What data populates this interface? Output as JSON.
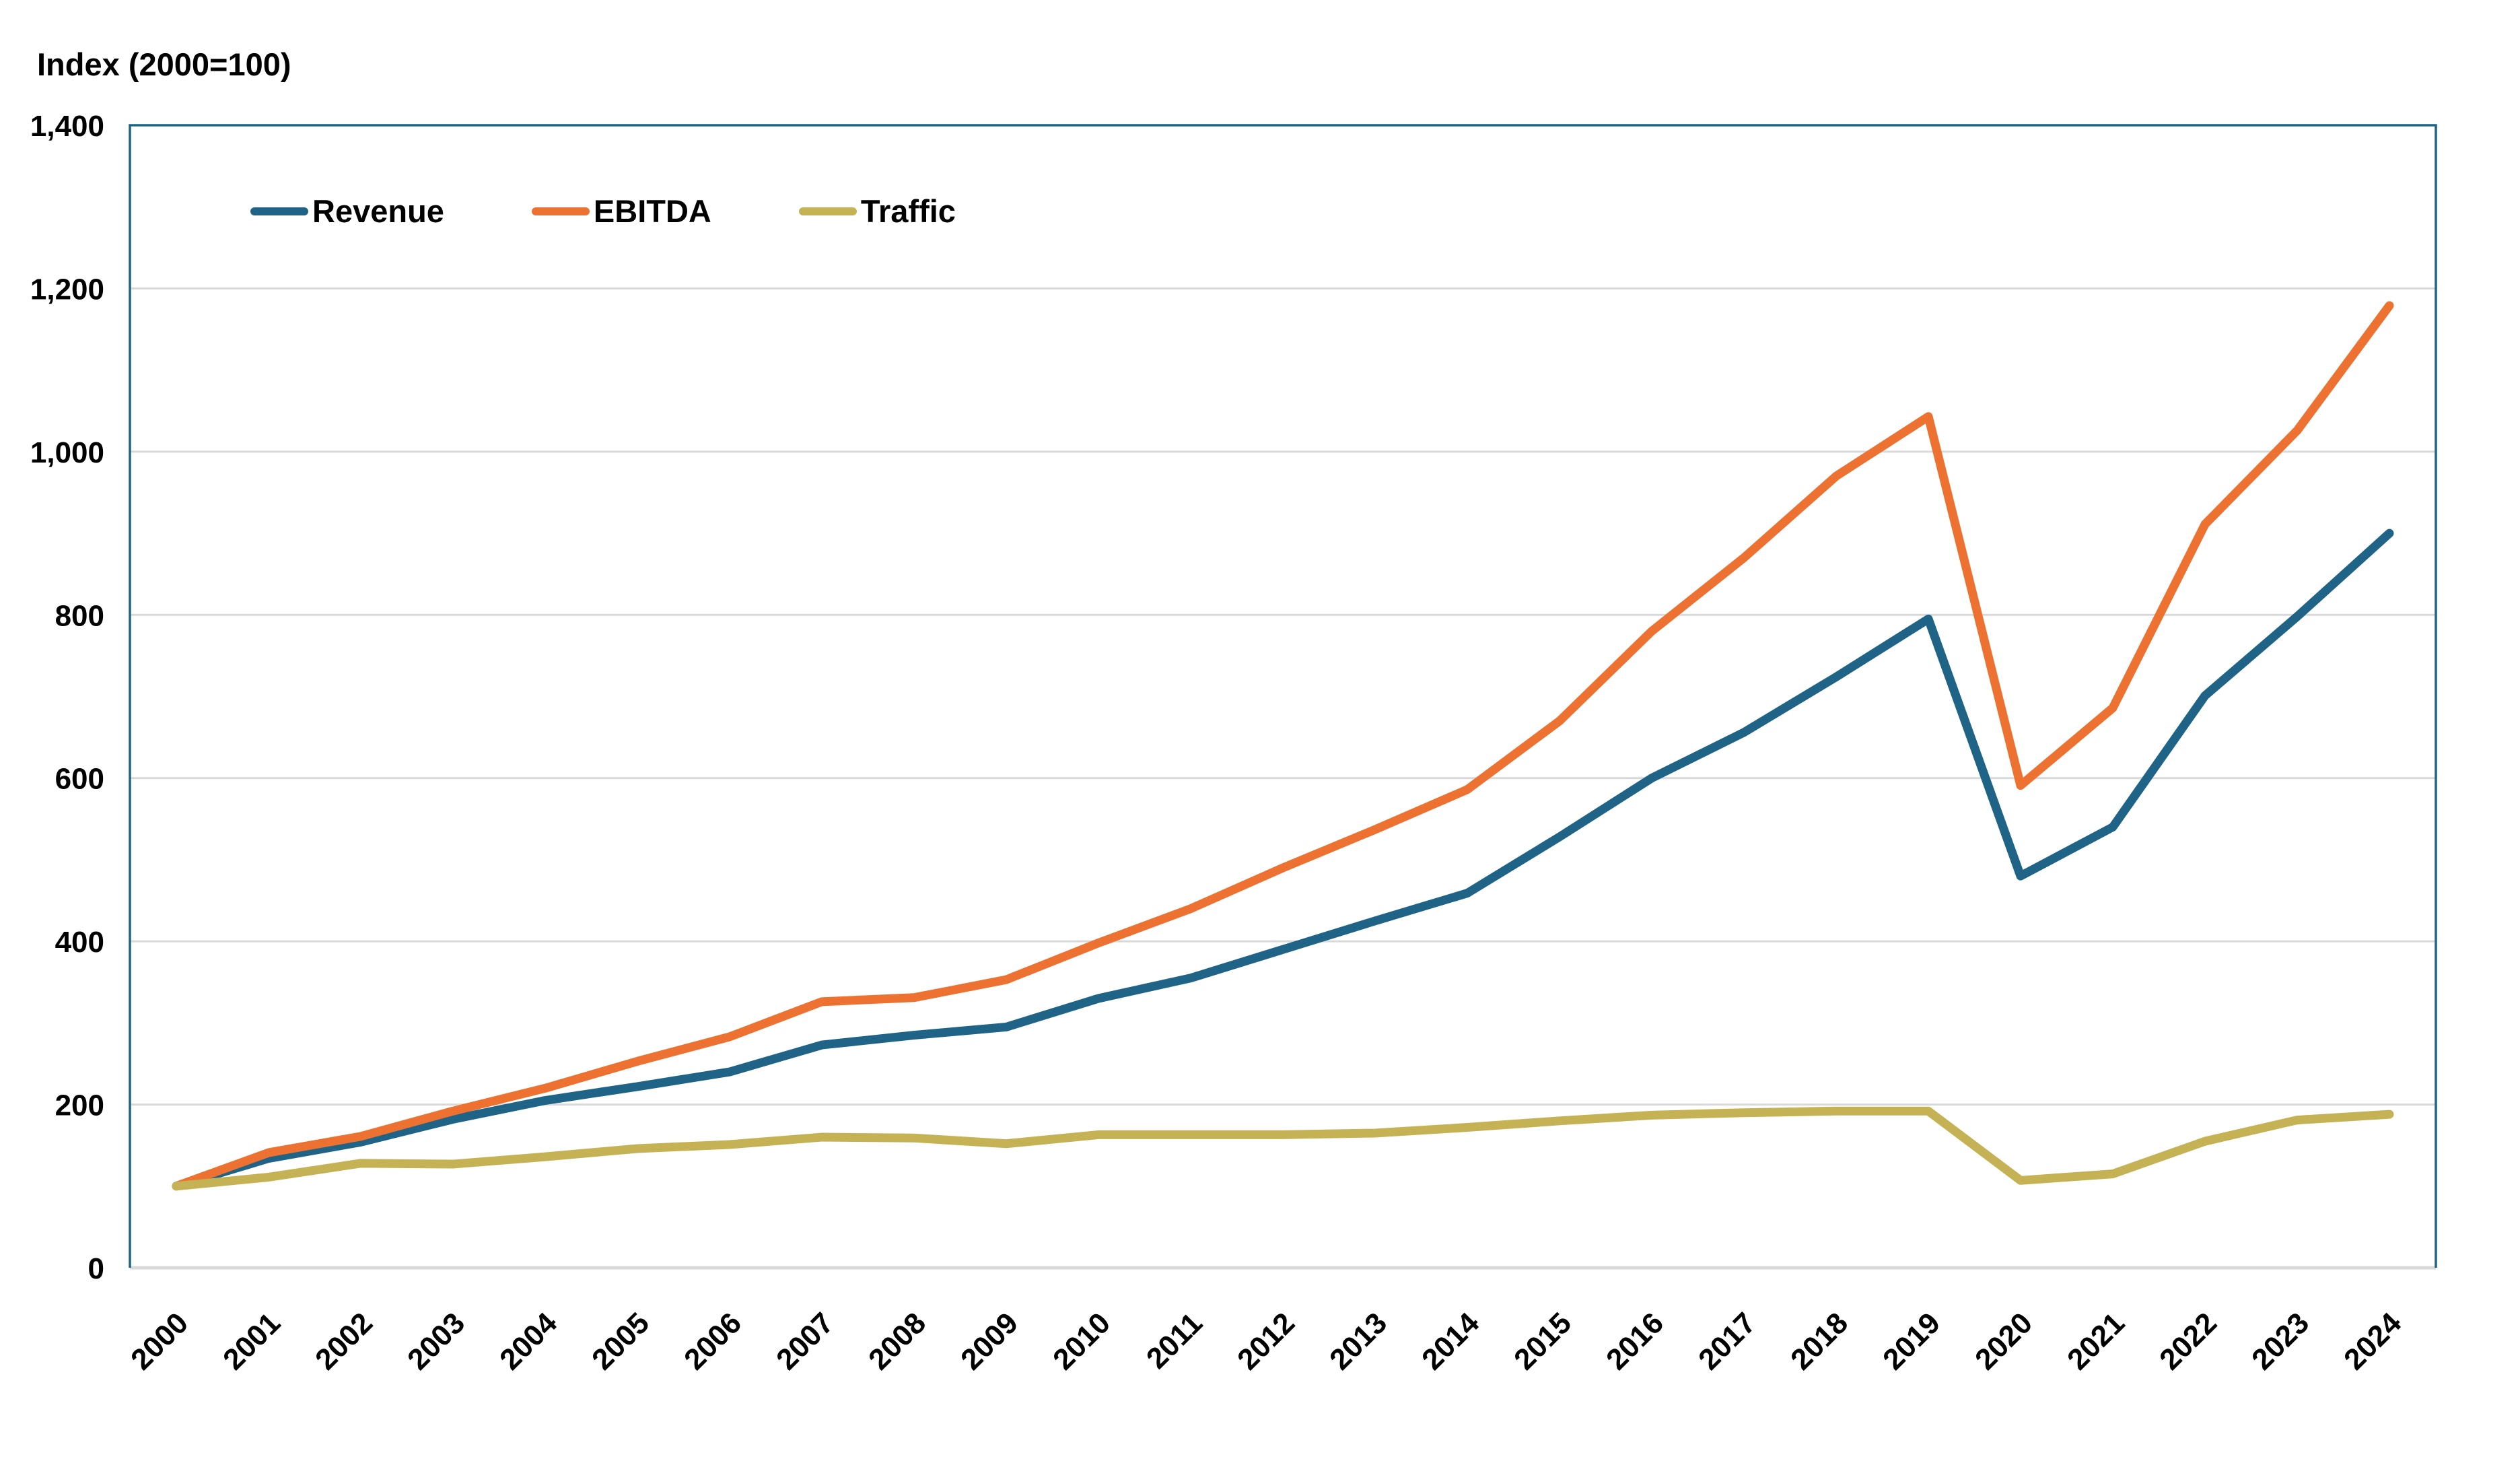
{
  "title": "Index (2000=100)",
  "colors": {
    "revenue": "#1F6487",
    "ebitda": "#ED7130",
    "traffic": "#C4B255",
    "gridline": "#D9D9D9",
    "axis_line": "#D9D9D9",
    "plot_border": "#1F6487",
    "text": "#000000",
    "background": "#FFFFFF"
  },
  "chart_data": {
    "type": "line",
    "title": "Index (2000=100)",
    "x": [
      2000,
      2001,
      2002,
      2003,
      2004,
      2005,
      2006,
      2007,
      2008,
      2009,
      2010,
      2011,
      2012,
      2013,
      2014,
      2015,
      2016,
      2017,
      2018,
      2019,
      2020,
      2021,
      2022,
      2023,
      2024
    ],
    "series": [
      {
        "name": "Revenue",
        "color": "#1F6487",
        "values": [
          100,
          134,
          154,
          182,
          205,
          222,
          240,
          273,
          285,
          295,
          330,
          355,
          390,
          425,
          459,
          528,
          600,
          656,
          724,
          795,
          480,
          540,
          701,
          798,
          900
        ]
      },
      {
        "name": "EBITDA",
        "color": "#ED7130",
        "values": [
          100,
          141,
          161,
          192,
          220,
          253,
          283,
          326,
          331,
          353,
          398,
          440,
          490,
          537,
          586,
          670,
          780,
          870,
          970,
          1043,
          591,
          686,
          911,
          1026,
          1179
        ]
      },
      {
        "name": "Traffic",
        "color": "#C4B255",
        "values": [
          100,
          111,
          128,
          127,
          136,
          146,
          151,
          160,
          159,
          152,
          163,
          163,
          163,
          165,
          172,
          180,
          187,
          190,
          192,
          192,
          107,
          115,
          155,
          181,
          188
        ]
      }
    ],
    "ylim": [
      0,
      1400
    ],
    "y_ticks": [
      "0",
      "200",
      "400",
      "600",
      "800",
      "1,000",
      "1,200",
      "1,400"
    ],
    "xlabel": "",
    "ylabel": "Index (2000=100)",
    "grid": "horizontal",
    "legend_position": "top-left-inside",
    "x_tick_rotation": 45
  }
}
